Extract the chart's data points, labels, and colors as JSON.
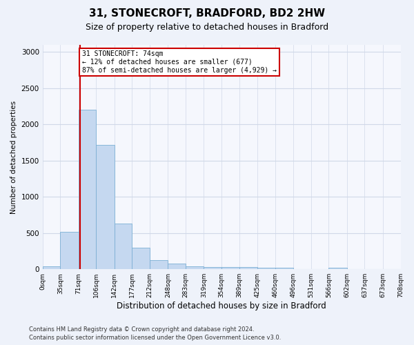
{
  "title1": "31, STONECROFT, BRADFORD, BD2 2HW",
  "title2": "Size of property relative to detached houses in Bradford",
  "xlabel": "Distribution of detached houses by size in Bradford",
  "ylabel": "Number of detached properties",
  "footnote1": "Contains HM Land Registry data © Crown copyright and database right 2024.",
  "footnote2": "Contains public sector information licensed under the Open Government Licence v3.0.",
  "annotation_line1": "31 STONECROFT: 74sqm",
  "annotation_line2": "← 12% of detached houses are smaller (677)",
  "annotation_line3": "87% of semi-detached houses are larger (4,929) →",
  "property_size_sqm": 74,
  "bar_edges": [
    0,
    35,
    71,
    106,
    142,
    177,
    212,
    248,
    283,
    319,
    354,
    389,
    425,
    460,
    496,
    531,
    566,
    602,
    637,
    673,
    708
  ],
  "bar_heights": [
    40,
    520,
    2200,
    1720,
    630,
    300,
    130,
    75,
    40,
    35,
    35,
    35,
    25,
    20,
    5,
    5,
    25,
    5,
    5,
    5
  ],
  "bar_color": "#c5d8f0",
  "bar_edge_color": "#7bafd4",
  "marker_line_color": "#cc0000",
  "annotation_box_edge_color": "#cc0000",
  "annotation_box_face_color": "#ffffff",
  "grid_color": "#d0d8e8",
  "ylim": [
    0,
    3100
  ],
  "yticks": [
    0,
    500,
    1000,
    1500,
    2000,
    2500,
    3000
  ],
  "bg_color": "#eef2fa",
  "plot_bg_color": "#f5f7fd",
  "title1_fontsize": 11,
  "title2_fontsize": 9,
  "xlabel_fontsize": 8.5,
  "ylabel_fontsize": 7.5,
  "xtick_fontsize": 6.5,
  "ytick_fontsize": 7.5,
  "footnote_fontsize": 6,
  "ann_fontsize": 7
}
